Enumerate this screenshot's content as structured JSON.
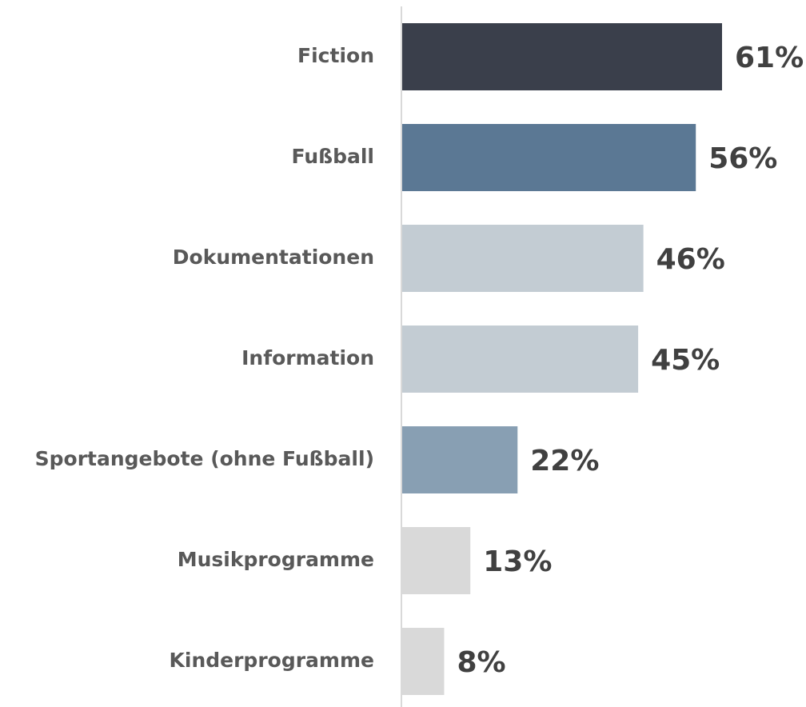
{
  "chart_data": {
    "type": "barh",
    "categories": [
      "Fiction",
      "Fußball",
      "Dokumentationen",
      "Information",
      "Sportangebote (ohne Fußball)",
      "Musikprogramme",
      "Kinderprogramme"
    ],
    "values": [
      61,
      56,
      46,
      45,
      22,
      13,
      8
    ],
    "value_labels": [
      "61%",
      "56%",
      "46%",
      "45%",
      "22%",
      "13%",
      "8%"
    ],
    "colors": [
      "#3a3f4b",
      "#5b7894",
      "#c3ccd3",
      "#c3ccd3",
      "#889fb3",
      "#d9d9d9",
      "#d9d9d9"
    ]
  }
}
